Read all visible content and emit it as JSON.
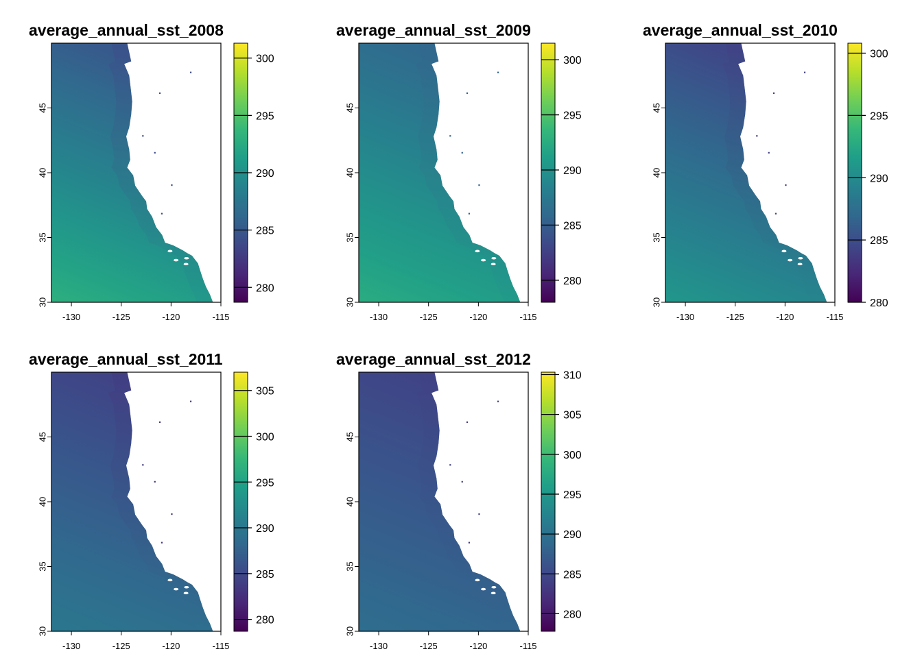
{
  "figure": {
    "panels": [
      {
        "title": "average_annual_sst_2008",
        "x_ticks": [
          -130,
          -125,
          -120,
          -115
        ],
        "y_ticks": [
          30,
          35,
          40,
          45
        ],
        "xlim": [
          -132,
          -115
        ],
        "ylim": [
          30,
          50
        ],
        "legend_range": [
          278.7,
          301.3
        ],
        "legend_ticks": [
          280,
          285,
          290,
          295,
          300
        ],
        "sst_offshore_south": 293.0,
        "sst_offshore_north": 285.0,
        "sst_nearshore_south": 290.5,
        "sst_nearshore_north": 284.0
      },
      {
        "title": "average_annual_sst_2009",
        "x_ticks": [
          -130,
          -125,
          -120,
          -115
        ],
        "y_ticks": [
          30,
          35,
          40,
          45
        ],
        "xlim": [
          -132,
          -115
        ],
        "ylim": [
          30,
          50
        ],
        "legend_range": [
          278.0,
          301.5
        ],
        "legend_ticks": [
          280,
          285,
          290,
          295,
          300
        ],
        "sst_offshore_south": 292.5,
        "sst_offshore_north": 286.0,
        "sst_nearshore_south": 290.5,
        "sst_nearshore_north": 285.5
      },
      {
        "title": "average_annual_sst_2010",
        "x_ticks": [
          -130,
          -125,
          -120,
          -115
        ],
        "y_ticks": [
          30,
          35,
          40,
          45
        ],
        "xlim": [
          -132,
          -115
        ],
        "ylim": [
          30,
          50
        ],
        "legend_range": [
          280.0,
          300.8
        ],
        "legend_ticks": [
          280,
          285,
          290,
          295,
          300
        ],
        "sst_offshore_south": 291.0,
        "sst_offshore_north": 284.5,
        "sst_nearshore_south": 289.5,
        "sst_nearshore_north": 284.0
      },
      {
        "title": "average_annual_sst_2011",
        "x_ticks": [
          -130,
          -125,
          -120,
          -115
        ],
        "y_ticks": [
          30,
          35,
          40,
          45
        ],
        "xlim": [
          -132,
          -115
        ],
        "ylim": [
          30,
          50
        ],
        "legend_range": [
          278.7,
          307.0
        ],
        "legend_ticks": [
          280,
          285,
          290,
          295,
          300,
          305
        ],
        "sst_offshore_south": 290.0,
        "sst_offshore_north": 284.5,
        "sst_nearshore_south": 289.0,
        "sst_nearshore_north": 283.5
      },
      {
        "title": "average_annual_sst_2012",
        "x_ticks": [
          -130,
          -125,
          -120,
          -115
        ],
        "y_ticks": [
          30,
          35,
          40,
          45
        ],
        "xlim": [
          -132,
          -115
        ],
        "ylim": [
          30,
          50
        ],
        "legend_range": [
          277.8,
          310.3
        ],
        "legend_ticks": [
          280,
          285,
          290,
          295,
          300,
          305,
          310
        ],
        "sst_offshore_south": 289.5,
        "sst_offshore_north": 284.5,
        "sst_nearshore_south": 288.5,
        "sst_nearshore_north": 284.0
      }
    ],
    "colormap": [
      "#440154",
      "#482878",
      "#3e4989",
      "#31688e",
      "#26828e",
      "#1f9e89",
      "#35b779",
      "#6ece58",
      "#b5de2b",
      "#fde725"
    ],
    "land_color": "#ffffff",
    "coastline": [
      [
        -124.4,
        50
      ],
      [
        -124.0,
        48.6
      ],
      [
        -124.7,
        48.4
      ],
      [
        -124.2,
        47.5
      ],
      [
        -124.0,
        46.2
      ],
      [
        -123.9,
        45.5
      ],
      [
        -124.0,
        44.5
      ],
      [
        -124.2,
        43.5
      ],
      [
        -124.5,
        42.8
      ],
      [
        -124.2,
        41.8
      ],
      [
        -124.1,
        41.0
      ],
      [
        -124.4,
        40.4
      ],
      [
        -123.8,
        39.8
      ],
      [
        -123.6,
        39.0
      ],
      [
        -122.9,
        38.2
      ],
      [
        -122.5,
        37.8
      ],
      [
        -122.4,
        37.2
      ],
      [
        -121.9,
        36.6
      ],
      [
        -121.5,
        35.8
      ],
      [
        -120.9,
        35.2
      ],
      [
        -120.6,
        34.6
      ],
      [
        -119.8,
        34.4
      ],
      [
        -118.8,
        34.0
      ],
      [
        -118.4,
        33.8
      ],
      [
        -117.9,
        33.6
      ],
      [
        -117.3,
        33.0
      ],
      [
        -117.1,
        32.5
      ],
      [
        -116.8,
        31.8
      ],
      [
        -116.5,
        31.2
      ],
      [
        -116.1,
        30.6
      ],
      [
        -115.8,
        30.0
      ]
    ],
    "islands": [
      [
        -120.1,
        33.95
      ],
      [
        -119.5,
        33.25
      ],
      [
        -118.45,
        33.4
      ],
      [
        -118.5,
        32.95
      ]
    ],
    "lakes": [
      [
        -118.1,
        47.8
      ],
      [
        -121.2,
        46.2
      ],
      [
        -122.9,
        42.9
      ],
      [
        -121.7,
        41.6
      ],
      [
        -120.0,
        39.1
      ],
      [
        -121.0,
        36.9
      ]
    ]
  }
}
